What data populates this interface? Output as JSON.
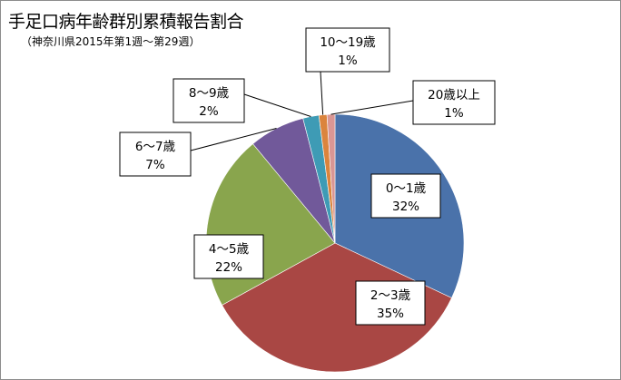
{
  "chart_data": {
    "type": "pie",
    "title": "手足口病年齢群別累積報告割合",
    "subtitle": "（神奈川県2015年第1週～第29週）",
    "categories": [
      "0～1歳",
      "2～3歳",
      "4～5歳",
      "6～7歳",
      "8～9歳",
      "10～19歳",
      "20歳以上"
    ],
    "values": [
      32,
      35,
      22,
      7,
      2,
      1,
      1
    ],
    "value_labels": [
      "32%",
      "35%",
      "22%",
      "7%",
      "2%",
      "1%",
      "1%"
    ],
    "colors": [
      "#4a72aa",
      "#a94744",
      "#89a54d",
      "#71599a",
      "#3e9bb5",
      "#db843d",
      "#d99694"
    ],
    "start_angle": "12 o'clock",
    "direction": "clockwise"
  }
}
